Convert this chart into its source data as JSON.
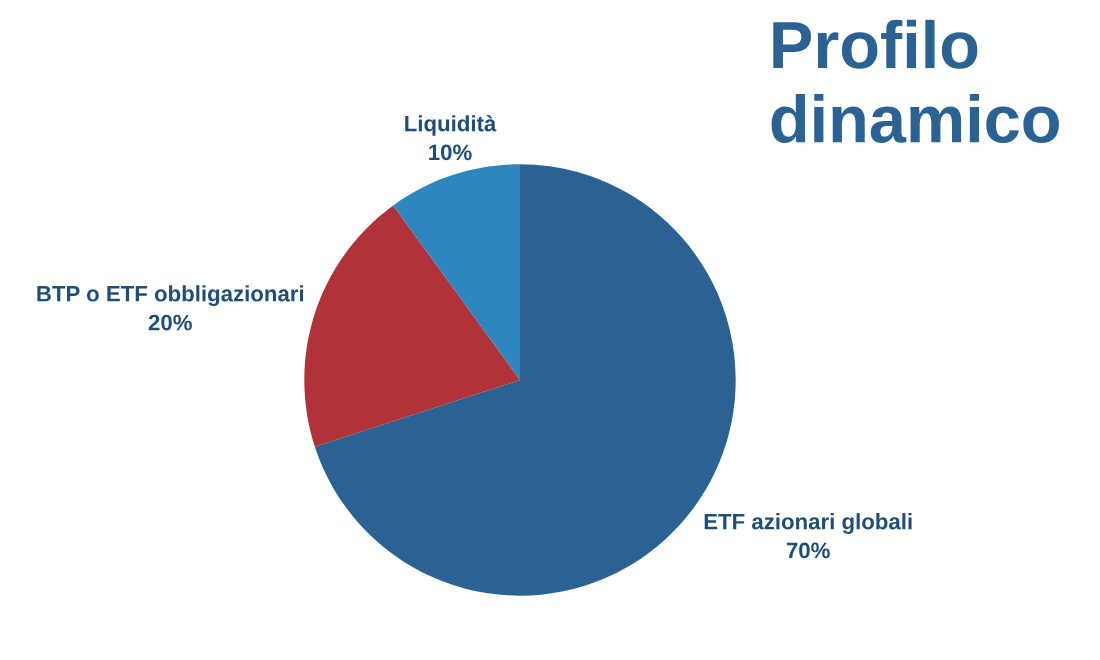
{
  "chart_data": {
    "type": "pie",
    "title": "Profilo dinamico",
    "categories": [
      "ETF azionari globali",
      "BTP o ETF obbligazionari",
      "Liquidità"
    ],
    "values": [
      70,
      20,
      10
    ],
    "colors": [
      "#2a6293",
      "#b0333a",
      "#2e86bf"
    ],
    "value_labels": [
      "70%",
      "20%",
      "10%"
    ]
  }
}
